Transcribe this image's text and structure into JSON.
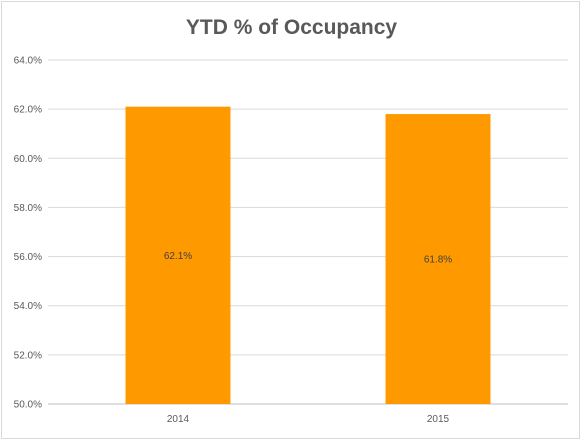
{
  "chart_data": {
    "type": "bar",
    "title": "YTD % of Occupancy",
    "xlabel": "",
    "ylabel": "",
    "categories": [
      "2014",
      "2015"
    ],
    "values": [
      62.1,
      61.8
    ],
    "data_labels": [
      "62.1%",
      "61.8%"
    ],
    "ylim": [
      50,
      64
    ],
    "yticks": [
      50,
      52,
      54,
      56,
      58,
      60,
      62,
      64
    ],
    "ytick_labels": [
      "50.0%",
      "52.0%",
      "54.0%",
      "56.0%",
      "58.0%",
      "60.0%",
      "62.0%",
      "64.0%"
    ],
    "grid": true,
    "legend": "none",
    "bar_color": "#ff9900"
  }
}
